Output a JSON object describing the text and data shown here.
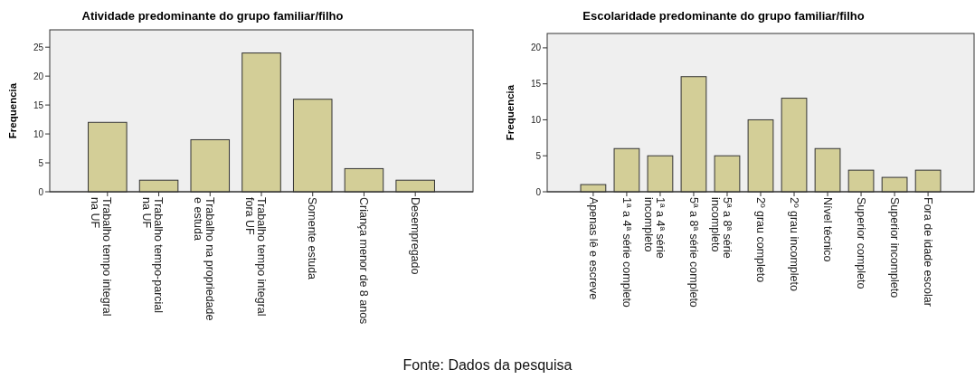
{
  "chart_data": [
    {
      "type": "bar",
      "title": "Atividade predominante do grupo familiar/filho",
      "ylabel": "Frequencia",
      "categories": [
        "Trabalho tempo integral\nna UF",
        "Trabalho tempo-parcial\nna UF",
        "Trabalho na propriedade\ne estuda",
        "Trabalho tempo integral\nfora UF",
        "Somente estuda",
        "Criança menor de 8 anos",
        "Desempregado"
      ],
      "values": [
        12,
        2,
        9,
        24,
        16,
        4,
        2
      ],
      "color": "#d3ce97",
      "ylim": [
        0,
        28
      ],
      "yticks": [
        0,
        5,
        10,
        15,
        20,
        25
      ],
      "annotations": [
        "Fonte: Dados da pesquisa"
      ]
    },
    {
      "type": "bar",
      "title": "Escolaridade predominante do grupo familiar/filho",
      "ylabel": "Frequencia",
      "categories": [
        "Apenas lê e escreve",
        "1ª a 4ª série completo",
        "1ª a 4ª série\nincompleto",
        "5ª a 8ª série completo",
        "5ª a 8ª série\nincompleto",
        "2º grau completo",
        "2º grau incompleto",
        "Nível técnico",
        "Superior completo",
        "Superior incompleto",
        "Fora de idade escolar"
      ],
      "values": [
        1,
        6,
        5,
        16,
        5,
        10,
        13,
        6,
        3,
        2,
        3
      ],
      "color": "#d3ce97",
      "ylim": [
        0,
        22
      ],
      "yticks": [
        0,
        5,
        10,
        15,
        20
      ]
    }
  ]
}
